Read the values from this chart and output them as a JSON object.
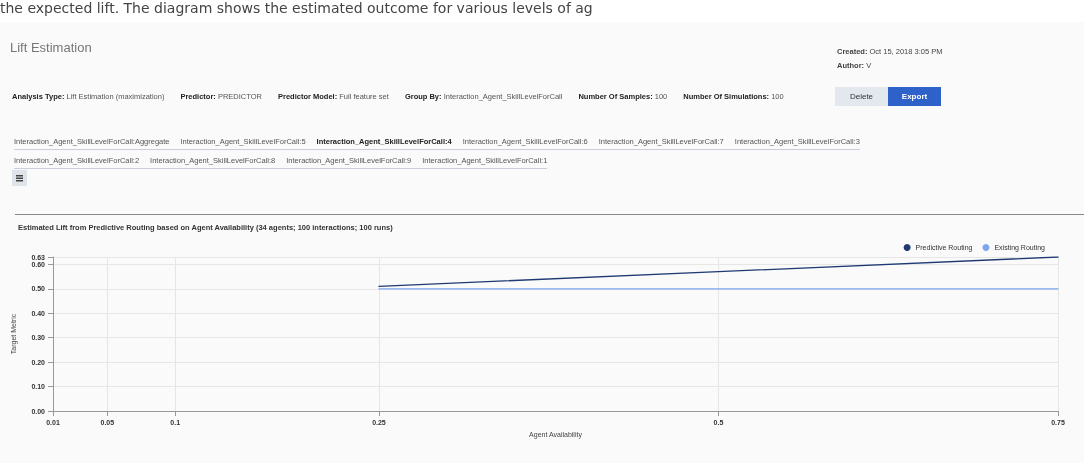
{
  "chart_data": {
    "type": "line",
    "title": "Estimated Lift from Predictive Routing based on Agent Availability (34 agents; 100 interactions; 100 runs)",
    "xlabel": "Agent Availability",
    "ylabel": "Target Metric",
    "x": [
      0.25,
      0.5,
      0.75
    ],
    "series": [
      {
        "name": "Predictive Routing",
        "color": "#1f3a73",
        "values": [
          0.51,
          0.57,
          0.63
        ]
      },
      {
        "name": "Existing Routing",
        "color": "#7ea6f0",
        "values": [
          0.5,
          0.5,
          0.5
        ]
      }
    ],
    "xlim": [
      0.01,
      0.75
    ],
    "xticks": [
      0.01,
      0.05,
      0.1,
      0.25,
      0.5,
      0.75
    ],
    "ylim": [
      0,
      0.63
    ],
    "yticks": [
      {
        "value": 0,
        "label": "0.00"
      },
      {
        "value": 0.1,
        "label": "0.10"
      },
      {
        "value": 0.2,
        "label": "0.20"
      },
      {
        "value": 0.3,
        "label": "0.30"
      },
      {
        "value": 0.4,
        "label": "0.40"
      },
      {
        "value": 0.5,
        "label": "0.50"
      },
      {
        "value": 0.6,
        "label": "0.60"
      },
      {
        "value": 0.63,
        "label": "0.63"
      }
    ],
    "grid": true,
    "legend": "top right",
    "marker": "none",
    "line_style": "solid",
    "annotations": [
      "the expected lift. The diagram shows the estimated outcome for various levels of ag",
      "Lift Estimation",
      "Created: Oct 15, 2018 3:05 PM",
      "Author: V",
      "Analysis Type: Lift Estimation (maximization)",
      "Predictor: PREDICTOR",
      "Predictor Model: Full feature set",
      "Group By: Interaction_Agent_SkillLevelForCall",
      "Number Of Samples: 100",
      "Number Of Simulations: 100",
      "Delete",
      "Export",
      "Interaction_Agent_SkillLevelForCall:Aggregate",
      "Interaction_Agent_SkillLevelForCall:5",
      "Interaction_Agent_SkillLevelForCall:4",
      "Interaction_Agent_SkillLevelForCall:6",
      "Interaction_Agent_SkillLevelForCall:7",
      "Interaction_Agent_SkillLevelForCall:3",
      "Interaction_Agent_SkillLevelForCall:2",
      "Interaction_Agent_SkillLevelForCall:8",
      "Interaction_Agent_SkillLevelForCall:9",
      "Interaction_Agent_SkillLevelForCall:1"
    ]
  }
}
